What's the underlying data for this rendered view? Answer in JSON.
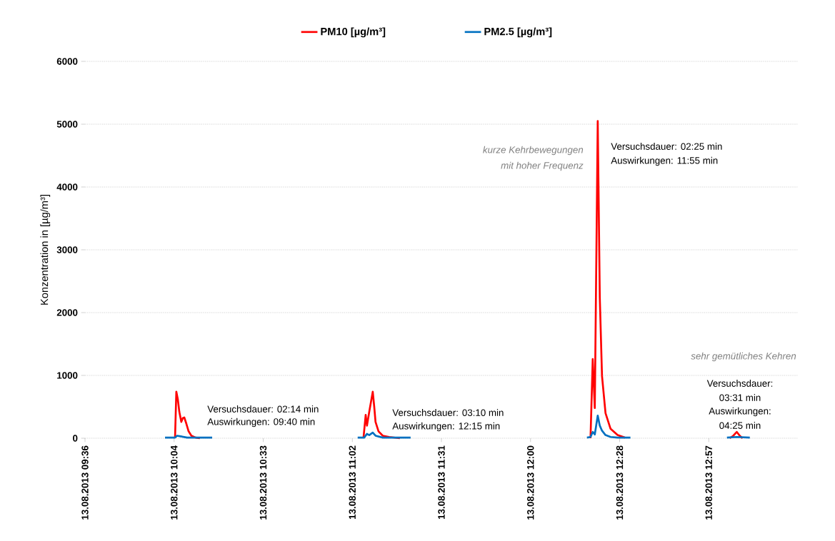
{
  "chart_data": {
    "type": "line",
    "ylabel": "Konzentration in [µg/m³]",
    "xlim": [
      "2013-08-13T09:36:00",
      "2013-08-13T13:26:24"
    ],
    "ylim": [
      0,
      6000
    ],
    "xticks": [
      {
        "value": "2013-08-13T09:36:00",
        "label": "13.08.2013 09:36"
      },
      {
        "value": "2013-08-13T10:04:48",
        "label": "13.08.2013 10:04"
      },
      {
        "value": "2013-08-13T10:33:36",
        "label": "13.08.2013 10:33"
      },
      {
        "value": "2013-08-13T11:02:24",
        "label": "13.08.2013 11:02"
      },
      {
        "value": "2013-08-13T11:31:12",
        "label": "13.08.2013 11:31"
      },
      {
        "value": "2013-08-13T12:00:00",
        "label": "13.08.2013 12:00"
      },
      {
        "value": "2013-08-13T12:28:48",
        "label": "13.08.2013 12:28"
      },
      {
        "value": "2013-08-13T12:57:36",
        "label": "13.08.2013 12:57"
      }
    ],
    "yticks": [
      0,
      1000,
      2000,
      3000,
      4000,
      5000,
      6000
    ],
    "grid": "y",
    "legend": "top",
    "line_style": "solid",
    "series": [
      {
        "name": "PM10 [µg/m³]",
        "color": "#ff0000",
        "x": [
          "2013-08-13T10:05:06",
          "2013-08-13T10:05:31",
          "2013-08-13T10:06:00",
          "2013-08-13T10:06:29",
          "2013-08-13T10:07:08",
          "2013-08-13T10:07:37",
          "2013-08-13T10:08:06",
          "2013-08-13T10:08:46",
          "2013-08-13T10:09:29",
          "2013-08-13T10:10:23",
          "2013-08-13T10:11:46",
          "2013-08-13T10:13:08",
          "2013-08-13T10:30:00",
          "2013-08-13T11:06:00",
          "2013-08-13T11:06:43",
          "2013-08-13T11:07:08",
          "2013-08-13T11:07:52",
          "2013-08-13T11:09:00",
          "2013-08-13T11:09:29",
          "2013-08-13T11:09:54",
          "2013-08-13T11:10:52",
          "2013-08-13T11:12:14",
          "2013-08-13T11:14:17",
          "2013-08-13T11:17:46",
          "2013-08-13T11:48:00",
          "2013-08-13T12:19:23",
          "2013-08-13T12:20:06",
          "2013-08-13T12:20:46",
          "2013-08-13T12:21:43",
          "2013-08-13T12:22:23",
          "2013-08-13T12:23:06",
          "2013-08-13T12:24:14",
          "2013-08-13T12:25:52",
          "2013-08-13T12:28:08",
          "2013-08-13T12:30:29",
          "2013-08-13T12:48:00",
          "2013-08-13T13:04:23",
          "2013-08-13T13:05:31",
          "2013-08-13T13:06:40",
          "2013-08-13T13:07:37",
          "2013-08-13T13:08:31"
        ],
        "values": [
          0,
          740,
          620,
          420,
          260,
          320,
          330,
          230,
          110,
          40,
          10,
          0,
          null,
          0,
          370,
          200,
          420,
          740,
          500,
          260,
          110,
          40,
          20,
          0,
          null,
          0,
          1260,
          480,
          5050,
          2240,
          990,
          400,
          150,
          50,
          10,
          null,
          0,
          40,
          100,
          40,
          0
        ]
      },
      {
        "name": "PM2.5 [µg/m³]",
        "color": "#0070c0",
        "x": [
          "2013-08-13T10:01:52",
          "2013-08-13T10:05:06",
          "2013-08-13T10:05:46",
          "2013-08-13T10:06:54",
          "2013-08-13T10:09:00",
          "2013-08-13T10:17:06",
          "2013-08-13T10:36:00",
          "2013-08-13T11:04:08",
          "2013-08-13T11:06:14",
          "2013-08-13T11:07:08",
          "2013-08-13T11:07:52",
          "2013-08-13T11:09:00",
          "2013-08-13T11:09:54",
          "2013-08-13T11:12:14",
          "2013-08-13T11:21:14",
          "2013-08-13T11:54:00",
          "2013-08-13T12:18:14",
          "2013-08-13T12:19:23",
          "2013-08-13T12:20:06",
          "2013-08-13T12:20:46",
          "2013-08-13T12:21:43",
          "2013-08-13T12:22:23",
          "2013-08-13T12:23:06",
          "2013-08-13T12:24:14",
          "2013-08-13T12:25:52",
          "2013-08-13T12:28:08",
          "2013-08-13T12:32:17",
          "2013-08-13T12:54:00",
          "2013-08-13T13:03:29",
          "2013-08-13T13:06:40",
          "2013-08-13T13:10:52"
        ],
        "values": [
          10,
          10,
          40,
          30,
          10,
          10,
          null,
          10,
          10,
          70,
          50,
          90,
          40,
          10,
          10,
          null,
          10,
          20,
          100,
          60,
          360,
          200,
          120,
          50,
          20,
          10,
          10,
          null,
          10,
          20,
          10
        ]
      }
    ],
    "annotations": [
      "Versuchsdauer: 02:14 min",
      "Auswirkungen: 09:40 min",
      "Versuchsdauer: 03:10 min",
      "Auswirkungen: 12:15 min",
      "kurze Kehrbewegungen",
      "mit hoher Frequenz",
      "Versuchsdauer: 02:25 min",
      "Auswirkungen: 11:55 min",
      "sehr gemütliches Kehren",
      "Versuchsdauer:",
      "03:31 min",
      "Auswirkungen:",
      "04:25 min"
    ]
  }
}
